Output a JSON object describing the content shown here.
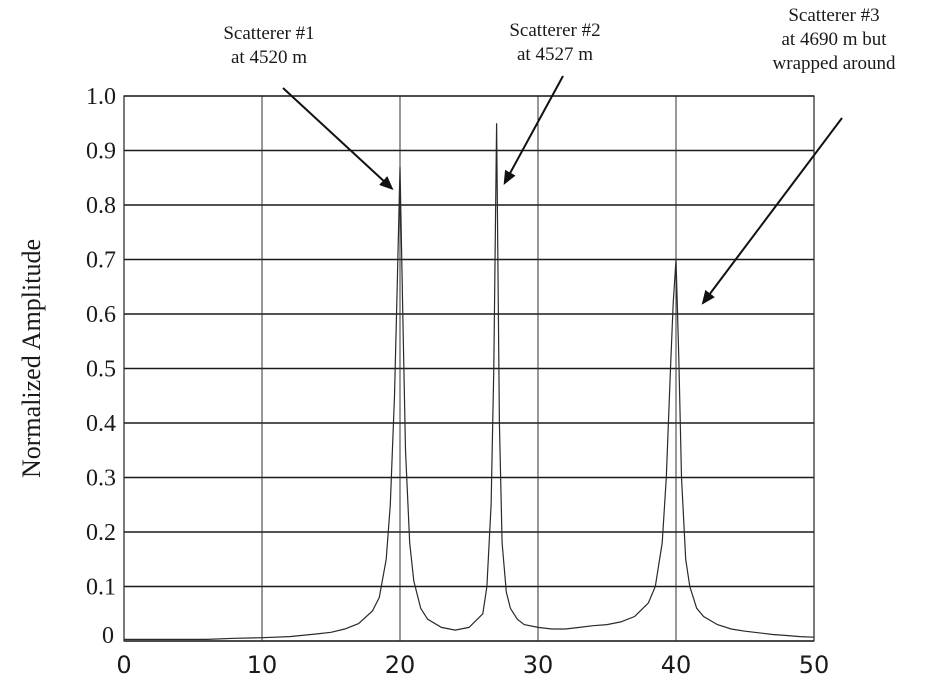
{
  "chart_data": {
    "type": "line",
    "title": "",
    "xlabel": "",
    "ylabel": "Normalized Amplitude",
    "xlim": [
      0,
      50
    ],
    "ylim": [
      0,
      1.0
    ],
    "grid": true,
    "x_ticks": [
      0,
      10,
      20,
      30,
      40,
      50
    ],
    "y_ticks": [
      0,
      0.1,
      0.2,
      0.3,
      0.4,
      0.5,
      0.6,
      0.7,
      0.8,
      0.9,
      1.0
    ],
    "x_tick_labels": [
      "0",
      "10",
      "20",
      "30",
      "40",
      "50"
    ],
    "y_tick_labels": [
      "0",
      "0.1",
      "0.2",
      "0.3",
      "0.4",
      "0.5",
      "0.6",
      "0.7",
      "0.8",
      "0.9",
      "1.0"
    ],
    "series": [
      {
        "x": [
          0,
          2,
          4,
          6,
          8,
          10,
          12,
          14,
          15,
          16,
          17,
          18,
          18.5,
          19,
          19.3,
          19.6,
          19.8,
          20,
          20.2,
          20.4,
          20.7,
          21,
          21.5,
          22,
          23,
          24,
          25,
          26,
          26.3,
          26.6,
          26.8,
          27,
          27.2,
          27.4,
          27.7,
          28,
          28.5,
          29,
          30,
          31,
          32,
          33,
          34,
          35,
          36,
          37,
          38,
          38.5,
          39,
          39.3,
          39.6,
          39.8,
          40,
          40.2,
          40.4,
          40.7,
          41,
          41.5,
          42,
          43,
          44,
          45,
          46,
          47,
          48,
          49,
          50
        ],
        "y": [
          0.003,
          0.003,
          0.003,
          0.003,
          0.005,
          0.006,
          0.008,
          0.013,
          0.016,
          0.022,
          0.032,
          0.055,
          0.08,
          0.15,
          0.25,
          0.45,
          0.65,
          0.87,
          0.6,
          0.35,
          0.18,
          0.11,
          0.06,
          0.04,
          0.025,
          0.02,
          0.025,
          0.05,
          0.1,
          0.25,
          0.5,
          0.95,
          0.4,
          0.18,
          0.09,
          0.06,
          0.04,
          0.03,
          0.025,
          0.022,
          0.022,
          0.025,
          0.028,
          0.03,
          0.035,
          0.045,
          0.07,
          0.1,
          0.18,
          0.3,
          0.5,
          0.62,
          0.7,
          0.52,
          0.3,
          0.15,
          0.1,
          0.06,
          0.045,
          0.03,
          0.022,
          0.018,
          0.015,
          0.012,
          0.01,
          0.008,
          0.007
        ]
      }
    ],
    "annotations": [
      {
        "lines": [
          "Scatterer #1",
          "at 4520 m"
        ],
        "points_to": [
          20,
          0.83
        ]
      },
      {
        "lines": [
          "Scatterer #2",
          "at 4527 m"
        ],
        "points_to": [
          27,
          0.84
        ]
      },
      {
        "lines": [
          "Scatterer #3",
          "at 4690 m but",
          "wrapped around"
        ],
        "points_to": [
          40.5,
          0.62
        ]
      }
    ]
  }
}
